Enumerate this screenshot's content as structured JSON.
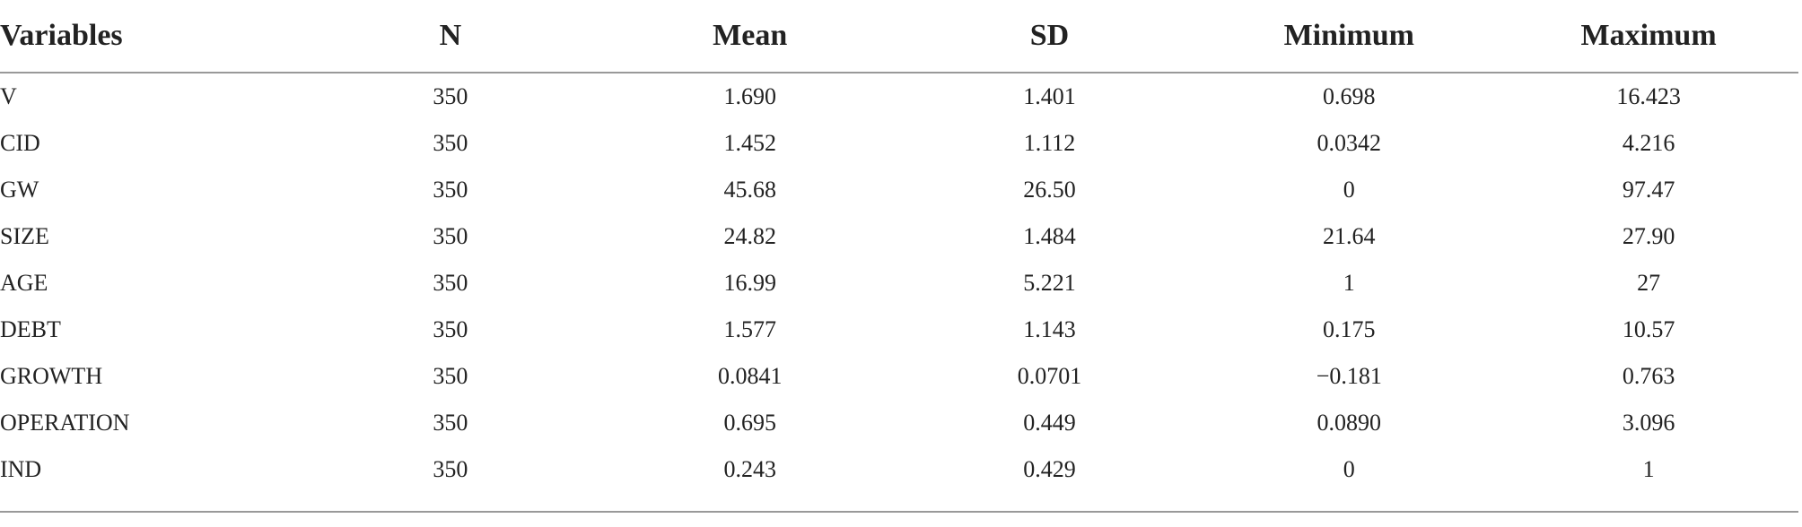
{
  "table": {
    "header": [
      "Variables",
      "N",
      "Mean",
      "SD",
      "Minimum",
      "Maximum"
    ],
    "rows": [
      [
        "V",
        "350",
        "1.690",
        "1.401",
        "0.698",
        "16.423"
      ],
      [
        "CID",
        "350",
        "1.452",
        "1.112",
        "0.0342",
        "4.216"
      ],
      [
        "GW",
        "350",
        "45.68",
        "26.50",
        "0",
        "97.47"
      ],
      [
        "SIZE",
        "350",
        "24.82",
        "1.484",
        "21.64",
        "27.90"
      ],
      [
        "AGE",
        "350",
        "16.99",
        "5.221",
        "1",
        "27"
      ],
      [
        "DEBT",
        "350",
        "1.577",
        "1.143",
        "0.175",
        "10.57"
      ],
      [
        "GROWTH",
        "350",
        "0.0841",
        "0.0701",
        "−0.181",
        "0.763"
      ],
      [
        "OPERATION",
        "350",
        "0.695",
        "0.449",
        "0.0890",
        "3.096"
      ],
      [
        "IND",
        "350",
        "0.243",
        "0.429",
        "0",
        "1"
      ]
    ]
  }
}
